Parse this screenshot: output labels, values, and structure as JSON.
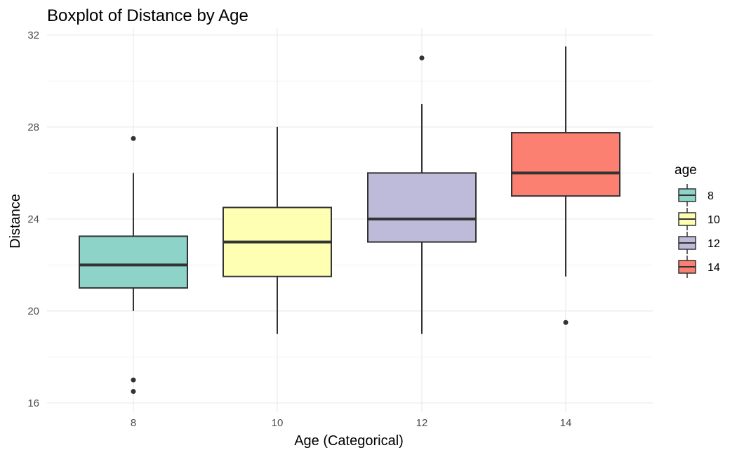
{
  "chart_data": {
    "type": "boxplot",
    "title": "Boxplot of Distance by Age",
    "xlabel": "Age (Categorical)",
    "ylabel": "Distance",
    "ylim": [
      15.6,
      32.3
    ],
    "yticks": [
      16,
      20,
      24,
      28,
      32
    ],
    "grid": true,
    "legend": {
      "title": "age",
      "position": "right"
    },
    "categories": [
      "8",
      "10",
      "12",
      "14"
    ],
    "boxes": [
      {
        "group": "8",
        "color": "#8DD3C7",
        "whisker_low": 20,
        "q1": 21,
        "median": 22,
        "q3": 23.25,
        "whisker_high": 26,
        "outliers": [
          27.5,
          17,
          16.5
        ]
      },
      {
        "group": "10",
        "color": "#FFFFB3",
        "whisker_low": 19,
        "q1": 21.5,
        "median": 23,
        "q3": 24.5,
        "whisker_high": 28,
        "outliers": []
      },
      {
        "group": "12",
        "color": "#BEBADA",
        "whisker_low": 19,
        "q1": 23,
        "median": 24,
        "q3": 26,
        "whisker_high": 29,
        "outliers": [
          31
        ]
      },
      {
        "group": "14",
        "color": "#FB8072",
        "whisker_low": 21.5,
        "q1": 25,
        "median": 26,
        "q3": 27.75,
        "whisker_high": 31.5,
        "outliers": [
          19.5
        ]
      }
    ]
  }
}
